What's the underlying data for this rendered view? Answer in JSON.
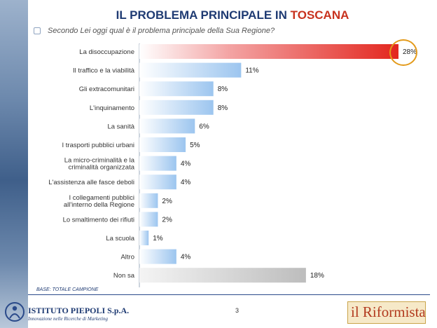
{
  "header": {
    "title_prefix": "IL PROBLEMA PRINCIPALE IN ",
    "title_highlight": "TOSCANA",
    "question": "Secondo Lei oggi qual è il problema principale della Sua Regione?"
  },
  "footer": {
    "base_note": "BASE: TOTALE CAMPIONE",
    "page_number": "3",
    "left_logo": {
      "name": "ISTITUTO PIEPOLI S.p.A.",
      "tagline": "Innovazione nelle Ricerche di Marketing"
    },
    "right_logo": "il Riformista"
  },
  "colors": {
    "title": "#1f3b73",
    "highlight": "#c8321e",
    "bar_blue": "#bcd8f3",
    "bar_red": "#e8574e",
    "bar_grey": "#c8c8c8",
    "ring": "#e39a1a"
  },
  "chart_data": {
    "type": "bar",
    "orientation": "horizontal",
    "title": "IL PROBLEMA PRINCIPALE IN TOSCANA",
    "unit": "%",
    "xlim": [
      0,
      28
    ],
    "categories": [
      "La disoccupazione",
      "Il traffico e la viabilità",
      "Gli extracomunitari",
      "L'inquinamento",
      "La sanità",
      "I trasporti pubblici urbani",
      "La micro-criminalità e la criminalità organizzata",
      "L'assistenza alle fasce deboli",
      "I collegamenti pubblici all'interno della Regione",
      "Lo smaltimento dei rifiuti",
      "La scuola",
      "Altro",
      "Non sa"
    ],
    "labels": [
      "28%",
      "11%",
      "8%",
      "8%",
      "6%",
      "5%",
      "4%",
      "4%",
      "2%",
      "2%",
      "1%",
      "4%",
      "18%"
    ],
    "values": [
      28,
      11,
      8,
      8,
      6,
      5,
      4,
      4,
      2,
      2,
      1,
      4,
      18
    ],
    "colors": [
      "red",
      "blue",
      "blue",
      "blue",
      "blue",
      "blue",
      "blue",
      "blue",
      "blue",
      "blue",
      "blue",
      "blue",
      "grey"
    ],
    "highlighted_index": 0
  }
}
